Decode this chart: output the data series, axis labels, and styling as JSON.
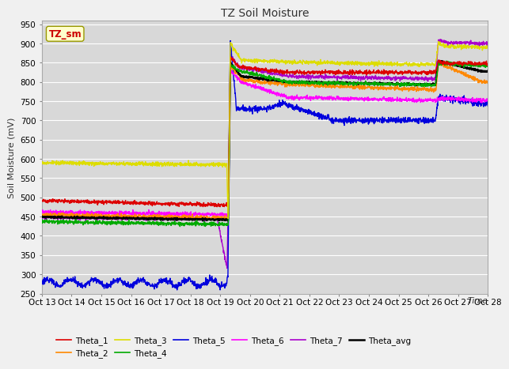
{
  "title": "TZ Soil Moisture",
  "ylabel": "Soil Moisture (mV)",
  "ylim": [
    250,
    960
  ],
  "yticks": [
    250,
    300,
    350,
    400,
    450,
    500,
    550,
    600,
    650,
    700,
    750,
    800,
    850,
    900,
    950
  ],
  "x_labels": [
    "Oct 13",
    "Oct 14",
    "Oct 15",
    "Oct 16",
    "Oct 17",
    "Oct 18",
    "Oct 19",
    "Oct 20",
    "Oct 21",
    "Oct 22",
    "Oct 23",
    "Oct 24",
    "Oct 25",
    "Oct 26",
    "Oct 27",
    "Oct 28"
  ],
  "plot_bg": "#d8d8d8",
  "fig_bg": "#f0f0f0",
  "grid_color": "#ffffff",
  "series_colors": {
    "Theta_1": "#dd0000",
    "Theta_2": "#ff8800",
    "Theta_3": "#dddd00",
    "Theta_4": "#00aa00",
    "Theta_5": "#0000dd",
    "Theta_6": "#ff00ff",
    "Theta_7": "#aa00cc",
    "Theta_avg": "#000000"
  },
  "series_lw": {
    "Theta_1": 1.0,
    "Theta_2": 1.0,
    "Theta_3": 1.0,
    "Theta_4": 1.0,
    "Theta_5": 1.0,
    "Theta_6": 1.0,
    "Theta_7": 1.0,
    "Theta_avg": 1.5
  },
  "box_label": "TZ_sm",
  "box_facecolor": "#ffffcc",
  "box_edgecolor": "#999900"
}
